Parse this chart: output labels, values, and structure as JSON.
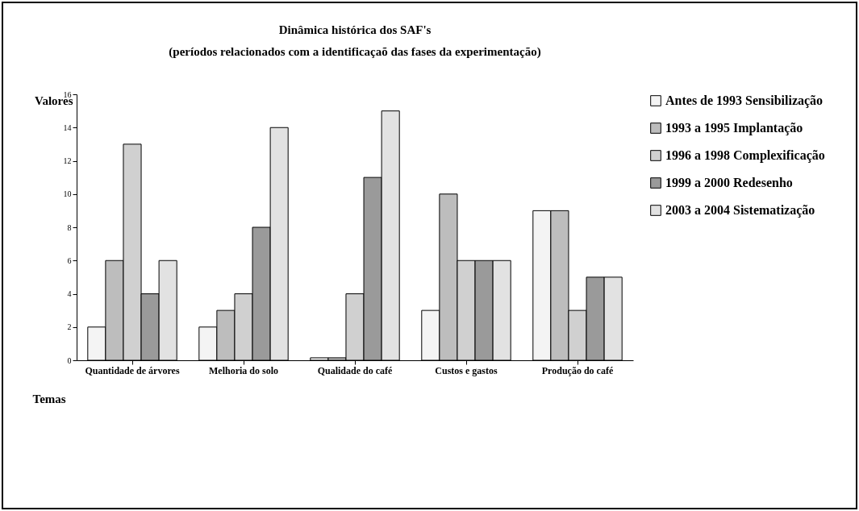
{
  "chart_data": {
    "type": "bar",
    "title": "Dinâmica histórica dos SAF's",
    "subtitle": "(períodos relacionados com a identificaçaõ das fases da experimentação)",
    "xlabel": "Temas",
    "ylabel": "Valores",
    "categories": [
      "Quantidade de árvores",
      "Melhoria do solo",
      "Qualidade do café",
      "Custos e gastos",
      "Produção do café"
    ],
    "series": [
      {
        "name": "Antes de 1993 Sensibilização",
        "color": "#f4f4f4",
        "values": [
          2,
          2,
          0.15,
          3,
          9
        ]
      },
      {
        "name": "1993 a 1995 Implantação",
        "color": "#bdbdbd",
        "values": [
          6,
          3,
          0.15,
          10,
          9
        ]
      },
      {
        "name": "1996 a 1998 Complexificação",
        "color": "#d0d0d0",
        "values": [
          13,
          4,
          4,
          6,
          3
        ]
      },
      {
        "name": "1999 a 2000 Redesenho",
        "color": "#9a9a9a",
        "values": [
          4,
          8,
          11,
          6,
          5
        ]
      },
      {
        "name": "2003 a 2004 Sistematização",
        "color": "#e2e2e2",
        "values": [
          6,
          14,
          15,
          6,
          5
        ]
      }
    ],
    "ylim": [
      0,
      16
    ],
    "yticks": [
      0,
      2,
      4,
      6,
      8,
      10,
      12,
      14,
      16
    ],
    "grid": false,
    "legend": "right"
  }
}
